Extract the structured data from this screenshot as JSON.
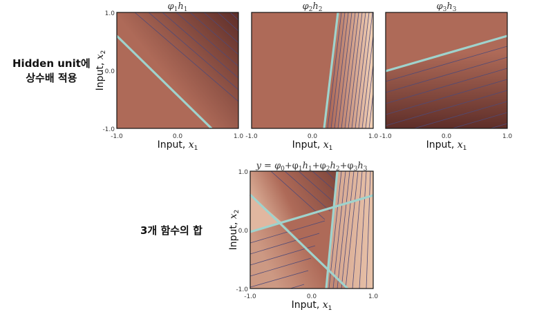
{
  "labels": {
    "scaled_caption_line1": "Hidden unit에",
    "scaled_caption_line2": "상수배 적용",
    "sum_caption": "3개 함수의 합"
  },
  "colors": {
    "base": "#ae6a58",
    "dark": "#5e2e29",
    "light": "#f2d2b8",
    "contour": "#4e4a78",
    "boundary": "#9fd3cd"
  },
  "chart_data": [
    {
      "type": "heatmap",
      "title": "φ1h1",
      "title_parts": [
        "φ",
        "1",
        "h",
        "1"
      ],
      "xlabel": "Input, x1",
      "ylabel": "Input, x2",
      "xlim": [
        -1.0,
        1.0
      ],
      "ylim": [
        -1.0,
        1.0
      ],
      "xticks": [
        "-1.0",
        "0.0",
        "1.0"
      ],
      "yticks": [
        "-1.0",
        "0.0",
        "1.0"
      ],
      "boundary_line": {
        "x1": [
          -1.0,
          0.6
        ],
        "x2": [
          0.6,
          -1.0
        ]
      },
      "gradient": "darker toward top-right, constant below boundary"
    },
    {
      "type": "heatmap",
      "title": "φ2h2",
      "title_parts": [
        "φ",
        "2",
        "h",
        "2"
      ],
      "xlabel": "Input, x1",
      "ylabel": "",
      "xlim": [
        -1.0,
        1.0
      ],
      "ylim": [
        -1.0,
        1.0
      ],
      "xticks": [
        "-1.0",
        "0.0",
        "1.0"
      ],
      "yticks": [],
      "boundary_line": {
        "x1": [
          0.2,
          0.4
        ],
        "x2": [
          -1.0,
          1.0
        ]
      },
      "gradient": "lighter toward right, constant left of boundary"
    },
    {
      "type": "heatmap",
      "title": "φ3h3",
      "title_parts": [
        "φ",
        "3",
        "h",
        "3"
      ],
      "xlabel": "Input, x1",
      "ylabel": "",
      "xlim": [
        -1.0,
        1.0
      ],
      "ylim": [
        -1.0,
        1.0
      ],
      "xticks": [
        "-1.0",
        "0.0",
        "1.0"
      ],
      "yticks": [],
      "boundary_line": {
        "x1": [
          -1.0,
          1.0
        ],
        "x2": [
          0.0,
          0.6
        ]
      },
      "gradient": "darker toward bottom, constant above boundary"
    },
    {
      "type": "heatmap",
      "title": "y = φ0+φ1h1+φ2h2+φ3h3",
      "title_parts": [
        "y = φ",
        "0",
        "+φ",
        "1",
        "h",
        "1",
        "+φ",
        "2",
        "h",
        "2",
        "+φ",
        "3",
        "h",
        "3"
      ],
      "xlabel": "Input, x1",
      "ylabel": "Input, x2",
      "xlim": [
        -1.0,
        1.0
      ],
      "ylim": [
        -1.0,
        1.0
      ],
      "xticks": [
        "-1.0",
        "0.0",
        "1.0"
      ],
      "yticks": [
        "-1.0",
        "0.0",
        "1.0"
      ],
      "boundary_lines": [
        {
          "x1": [
            -1.0,
            0.6
          ],
          "x2": [
            0.6,
            -1.0
          ]
        },
        {
          "x1": [
            0.2,
            0.4
          ],
          "x2": [
            -1.0,
            1.0
          ]
        },
        {
          "x1": [
            -1.0,
            1.0
          ],
          "x2": [
            0.0,
            0.6
          ]
        }
      ],
      "gradient": "piecewise linear sum of the three functions"
    }
  ]
}
